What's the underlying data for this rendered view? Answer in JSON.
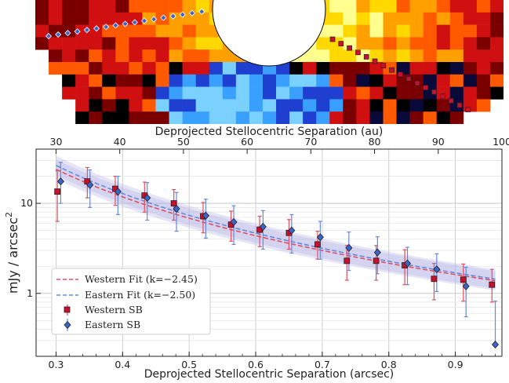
{
  "chart_data": [
    {
      "type": "heatmap",
      "description_hint": "disk surface-brightness image with occulting mask; western and eastern trace points overlaid",
      "colormap": [
        "#0a0a3a",
        "#1e3fd0",
        "#3aa0ff",
        "#7ad0ff",
        "#000000",
        "#7a0000",
        "#d01010",
        "#ff5a00",
        "#ffa000",
        "#ffd800",
        "#ffff90"
      ]
    },
    {
      "type": "scatter",
      "xlabel": "Deprojected Stellocentric Separation (arcsec)",
      "x2label": "Deprojected Stellocentric Separation (au)",
      "ylabel": "mJy / arcsec",
      "ylabel_sup": "2",
      "xlim": [
        0.27,
        0.97
      ],
      "ylim": [
        0.2,
        40
      ],
      "yscale": "log",
      "x2lim": [
        30,
        100
      ],
      "xticks": [
        "0.3",
        "0.4",
        "0.5",
        "0.6",
        "0.7",
        "0.8",
        "0.9"
      ],
      "x2ticks": [
        "30",
        "40",
        "50",
        "60",
        "70",
        "80",
        "90",
        "100"
      ],
      "yticks": [
        "1",
        "10"
      ],
      "grid": true,
      "legend_position": "lower-left",
      "legend": {
        "western_fit": "Western Fit (k=−2.45)",
        "eastern_fit": "Eastern Fit (k=−2.50)",
        "western_sb": "Western SB",
        "eastern_sb": "Eastern SB"
      },
      "colors": {
        "western": "#e05060",
        "western_marker": "#c8102e",
        "eastern": "#6688dd",
        "eastern_marker": "#3a64c8",
        "band": "#b4b4e6"
      },
      "series": [
        {
          "name": "Western SB",
          "x": [
            0.302,
            0.347,
            0.389,
            0.433,
            0.477,
            0.521,
            0.563,
            0.606,
            0.65,
            0.693,
            0.737,
            0.781,
            0.824,
            0.868,
            0.912,
            0.955
          ],
          "y": [
            13.5,
            17.5,
            14.5,
            12.2,
            10.0,
            7.2,
            5.8,
            5.1,
            4.7,
            3.5,
            2.3,
            2.3,
            2.05,
            1.45,
            1.42,
            1.25
          ],
          "yerr_low": [
            7.2,
            6.0,
            5.0,
            4.2,
            3.5,
            2.5,
            2.0,
            1.8,
            1.6,
            1.1,
            0.9,
            0.9,
            0.8,
            0.6,
            0.6,
            0.45
          ],
          "yerr_high": [
            9.5,
            7.5,
            5.5,
            5.0,
            4.2,
            3.0,
            2.4,
            2.1,
            1.9,
            1.4,
            1.1,
            1.1,
            1.0,
            0.7,
            0.7,
            0.6
          ]
        },
        {
          "name": "Eastern SB",
          "x": [
            0.307,
            0.351,
            0.393,
            0.437,
            0.481,
            0.525,
            0.567,
            0.611,
            0.654,
            0.697,
            0.74,
            0.783,
            0.828,
            0.872,
            0.916,
            0.96
          ],
          "y": [
            17.5,
            16.0,
            13.5,
            11.5,
            8.7,
            7.3,
            6.2,
            5.5,
            5.0,
            4.2,
            3.2,
            2.85,
            2.15,
            1.85,
            1.2,
            0.27
          ],
          "yerr_low": [
            7.5,
            7.0,
            6.0,
            5.0,
            3.8,
            3.2,
            2.7,
            2.4,
            2.2,
            1.8,
            1.4,
            1.2,
            0.9,
            0.8,
            0.65,
            0.0
          ],
          "yerr_high": [
            11.0,
            7.5,
            6.5,
            5.5,
            4.5,
            3.8,
            3.2,
            2.8,
            2.5,
            2.1,
            1.6,
            1.4,
            1.1,
            0.9,
            0.75,
            0.55
          ]
        },
        {
          "name": "Western Fit (k=−2.45)",
          "style": "dashed",
          "amplitude_at_1arcsec": 1.25,
          "exponent": -2.45
        },
        {
          "name": "Eastern Fit (k=−2.50)",
          "style": "dashed",
          "amplitude_at_1arcsec": 1.3,
          "exponent": -2.5
        }
      ]
    }
  ]
}
